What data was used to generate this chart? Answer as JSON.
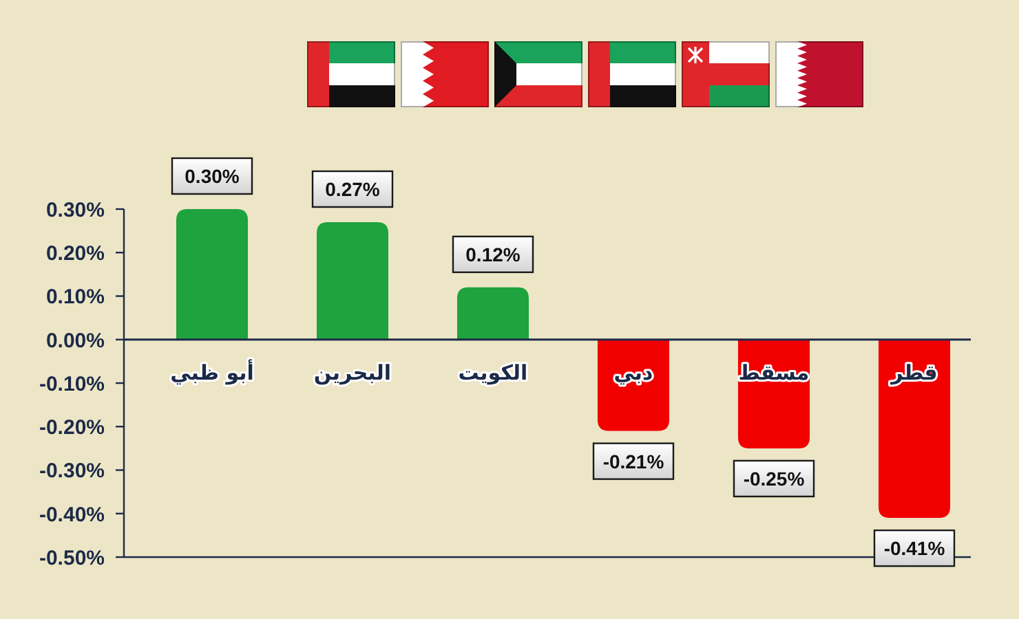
{
  "chart_data": {
    "type": "bar",
    "categories": [
      "أبو ظبي",
      "البحرين",
      "الكويت",
      "دبي",
      "مسقط",
      "قطر"
    ],
    "values": [
      0.3,
      0.27,
      0.12,
      -0.21,
      -0.25,
      -0.41
    ],
    "colors": [
      "#1fa33e",
      "#1fa33e",
      "#1fa33e",
      "#f20000",
      "#f20000",
      "#f20000"
    ],
    "value_labels": [
      "0.30%",
      "0.27%",
      "0.12%",
      "-0.21%",
      "-0.25%",
      "-0.41%"
    ],
    "ylim": [
      -0.5,
      0.3
    ],
    "yticks": [
      {
        "value": 0.3,
        "label": "0.30%"
      },
      {
        "value": 0.2,
        "label": "0.20%"
      },
      {
        "value": 0.1,
        "label": "0.10%"
      },
      {
        "value": 0,
        "label": "0.00%"
      },
      {
        "value": -0.1,
        "label": "-0.10%"
      },
      {
        "value": -0.2,
        "label": "-0.20%"
      },
      {
        "value": -0.3,
        "label": "-0.30%"
      },
      {
        "value": -0.4,
        "label": "-0.40%"
      },
      {
        "value": -0.5,
        "label": "-0.50%"
      }
    ]
  }
}
